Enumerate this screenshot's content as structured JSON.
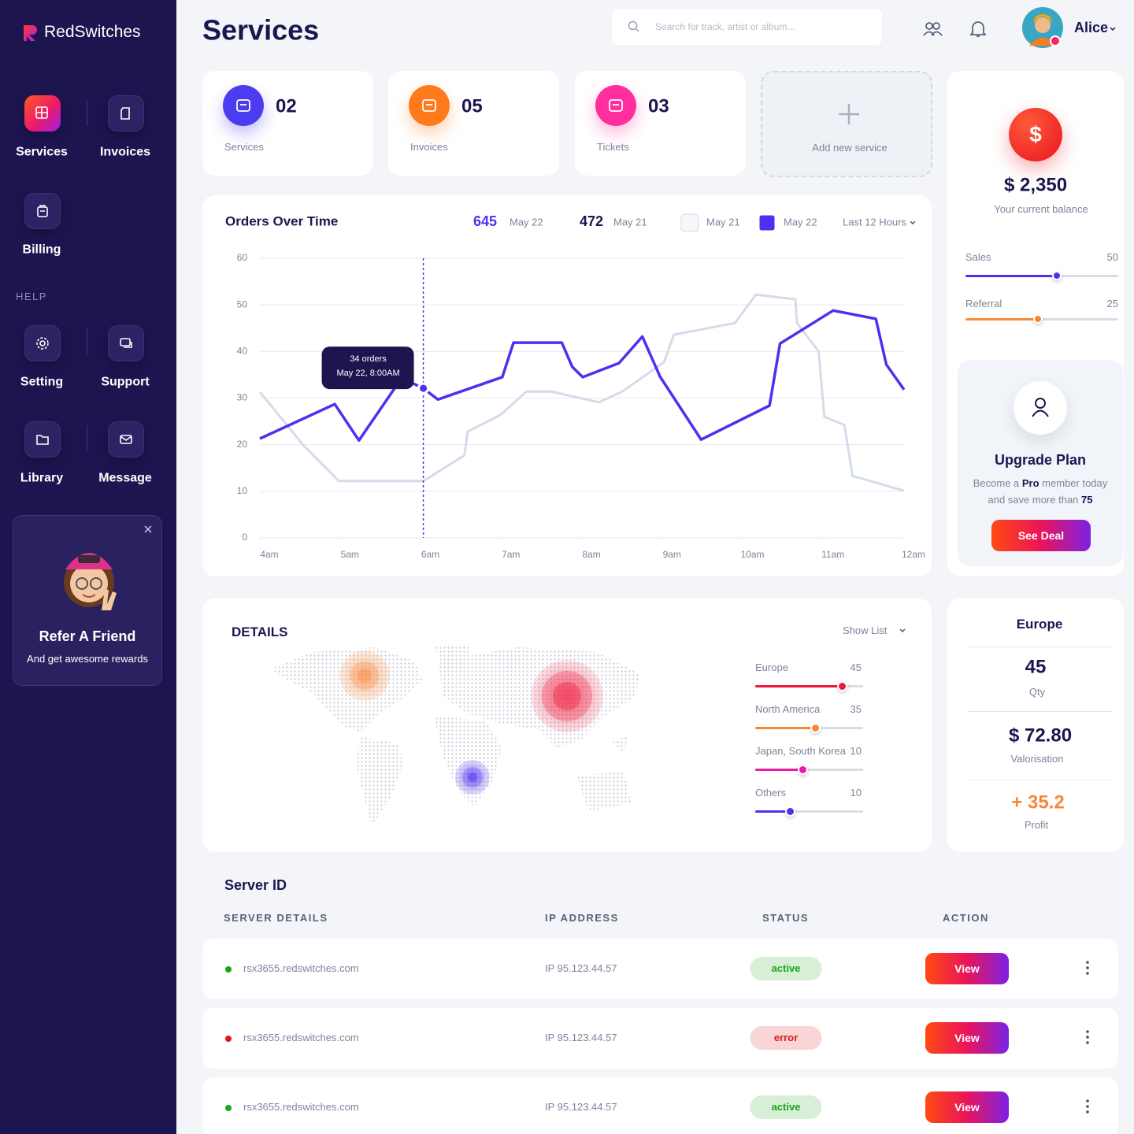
{
  "brand": "RedSwitches",
  "nav": [
    "Services",
    "Invoices",
    "Billing"
  ],
  "help_label": "HELP",
  "help_nav": [
    "Setting",
    "Support",
    "Library",
    "Message"
  ],
  "refer": {
    "title": "Refer A Friend",
    "text": "And get awesome rewards"
  },
  "header": {
    "title": "Services",
    "search_placeholder": "Search for track, artist or album...",
    "user": "Alice"
  },
  "stats": [
    {
      "value": "02",
      "label": "Services",
      "color": "#4c3cf0"
    },
    {
      "value": "05",
      "label": "Invoices",
      "color": "#ff7a1a"
    },
    {
      "value": "03",
      "label": "Tickets",
      "color": "#ff2fa0"
    }
  ],
  "add_service": "Add new service",
  "orders": {
    "summary": [
      {
        "value": 645,
        "label": "May 22"
      },
      {
        "value": 472,
        "label": "May 21"
      }
    ],
    "range": "Last 12 Hours",
    "tooltip": {
      "title": "34 orders",
      "subtitle": "May 22, 8:00AM"
    }
  },
  "chart_data": {
    "type": "line",
    "title": "Orders Over Time",
    "xlim": [
      4,
      12
    ],
    "xticks": [
      {
        "value": 4,
        "label": "4am"
      },
      {
        "value": 5,
        "label": "5am"
      },
      {
        "value": 6,
        "label": "6am"
      },
      {
        "value": 7,
        "label": "7am"
      },
      {
        "value": 8,
        "label": "8am"
      },
      {
        "value": 9,
        "label": "9am"
      },
      {
        "value": 10,
        "label": "10am"
      },
      {
        "value": 11,
        "label": "11am"
      },
      {
        "value": 12,
        "label": "12am"
      }
    ],
    "ylim": [
      0,
      60
    ],
    "yticks": [
      0,
      10,
      20,
      30,
      40,
      50,
      60
    ],
    "grid": true,
    "series": [
      {
        "name": "May 21",
        "color": "#d3dce8",
        "x": [
          4,
          4.54,
          4.98,
          6.03,
          6.54,
          6.58,
          6.99,
          7.31,
          7.62,
          8.21,
          8.5,
          9.02,
          9.14,
          9.9,
          10.16,
          10.65,
          10.67,
          10.94,
          11.01,
          11.26,
          11.36,
          12
        ],
        "values": [
          31.3,
          19.9,
          12.2,
          12.2,
          17.7,
          22.8,
          26.4,
          31.4,
          31.4,
          29.1,
          31.4,
          37.7,
          43.6,
          46.1,
          52.2,
          51.2,
          46.1,
          40,
          26,
          24.2,
          13.3,
          10.1
        ]
      },
      {
        "name": "May 22",
        "color": "#4f2ff0",
        "x": [
          4,
          4.93,
          5.23,
          5.76,
          6.03,
          6.21,
          7.01,
          7.15,
          7.75,
          7.88,
          8.01,
          8.46,
          8.75,
          8.97,
          9.48,
          10.33,
          10.46,
          11.12,
          11.65,
          11.78,
          12
        ],
        "values": [
          21.3,
          28.7,
          20.9,
          34.3,
          32.1,
          29.7,
          34.5,
          41.9,
          41.9,
          36.7,
          34.5,
          37.5,
          43.2,
          34.6,
          21.1,
          28.4,
          41.7,
          48.8,
          47,
          37.2,
          31.8
        ]
      }
    ]
  },
  "balance": {
    "currency_icon": "$",
    "amount": "$ 2,350",
    "label": "Your current balance",
    "sliders": [
      {
        "name": "Sales",
        "value": 50,
        "color": "#4f2ff0"
      },
      {
        "name": "Referral",
        "value": 25,
        "color": "#f7883a"
      }
    ]
  },
  "upgrade": {
    "title": "Upgrade Plan",
    "text": [
      "Become a ",
      "Pro",
      " member today",
      "and save more than ",
      "75"
    ],
    "button": "See Deal"
  },
  "details": {
    "title": "DETAILS",
    "dropdown": "Show List",
    "regions": [
      {
        "name": "Europe",
        "value": 45,
        "color": "#f0193c"
      },
      {
        "name": "North America",
        "value": 35,
        "color": "#f7883a"
      },
      {
        "name": "Japan, South Korea",
        "value": 10,
        "color": "#ee19a4"
      },
      {
        "name": "Others",
        "value": 10,
        "color": "#4f2ff0"
      }
    ]
  },
  "region_card": {
    "title": "Europe",
    "qty": "45",
    "qty_label": "Qty",
    "valorisation": "$ 72.80",
    "valorisation_label": "Valorisation",
    "profit": "+ 35.2",
    "profit_label": "Profit"
  },
  "servers": {
    "title": "Server ID",
    "headers": [
      "SERVER DETAILS",
      "IP ADDRESS",
      "STATUS",
      "ACTION"
    ],
    "rows": [
      {
        "host": "rsx3655.redswitches.com",
        "ip": "IP 95.123.44.57",
        "status": "active",
        "color": "#1aa51a",
        "action": "View"
      },
      {
        "host": "rsx3655.redswitches.com",
        "ip": "IP 95.123.44.57",
        "status": "error",
        "color": "#e01818",
        "action": "View"
      },
      {
        "host": "rsx3655.redswitches.com",
        "ip": "IP 95.123.44.57",
        "status": "active",
        "color": "#1aa51a",
        "action": "View"
      }
    ]
  }
}
